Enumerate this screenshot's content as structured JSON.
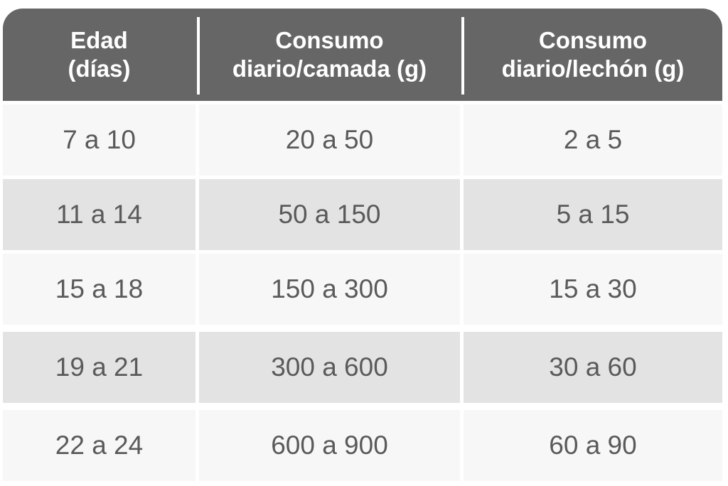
{
  "table": {
    "headers": [
      "Edad\n(días)",
      "Consumo\ndiario/camada (g)",
      "Consumo\ndiario/lechón (g)"
    ],
    "rows": [
      [
        "7 a 10",
        "20 a 50",
        "2 a 5"
      ],
      [
        "11 a 14",
        "50 a 150",
        "5 a 15"
      ],
      [
        "15 a 18",
        "150 a 300",
        "15 a 30"
      ],
      [
        "19 a 21",
        "300 a 600",
        "30 a 60"
      ],
      [
        "22 a 24",
        "600 a 900",
        "60 a 90"
      ]
    ]
  },
  "colors": {
    "header_bg": "#666666",
    "header_text": "#ffffff",
    "row_light": "#f7f7f7",
    "row_dark": "#e3e3e3",
    "cell_text": "#5a5a5a"
  }
}
